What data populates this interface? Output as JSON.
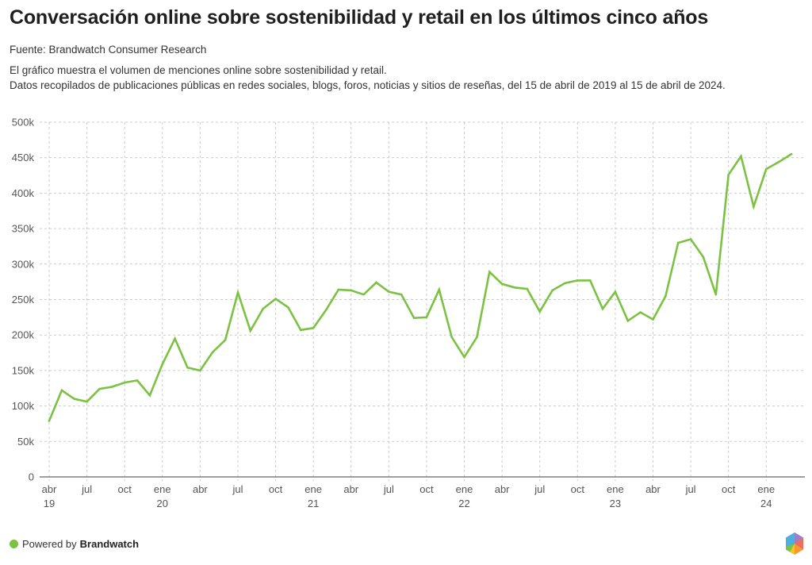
{
  "header": {
    "title": "Conversación online sobre sostenibilidad y retail en los últimos cinco años",
    "source": "Fuente: Brandwatch Consumer Research",
    "description_lines": [
      "El gráfico muestra el volumen de menciones online sobre sostenibilidad y retail.",
      "Datos recopilados de publicaciones públicas en redes sociales, blogs, foros, noticias y sitios de reseñas, del 15 de abril de 2019 al 15 de abril de 2024."
    ]
  },
  "footer": {
    "powered_by": "Powered by",
    "brand": "Brandwatch",
    "logo_icon": "brandwatch-hexagon-logo-icon"
  },
  "colors": {
    "line": "#7cc242",
    "grid": "#cccccc",
    "axis": "#666666"
  },
  "chart_data": {
    "type": "line",
    "title": "Conversación online sobre sostenibilidad y retail en los últimos cinco años",
    "xlabel": "",
    "ylabel": "",
    "ylim": [
      0,
      500000
    ],
    "grid": true,
    "y_ticks": [
      {
        "value": 0,
        "label": "0"
      },
      {
        "value": 50000,
        "label": "50k"
      },
      {
        "value": 100000,
        "label": "100k"
      },
      {
        "value": 150000,
        "label": "150k"
      },
      {
        "value": 200000,
        "label": "200k"
      },
      {
        "value": 250000,
        "label": "250k"
      },
      {
        "value": 300000,
        "label": "300k"
      },
      {
        "value": 350000,
        "label": "350k"
      },
      {
        "value": 400000,
        "label": "400k"
      },
      {
        "value": 450000,
        "label": "450k"
      },
      {
        "value": 500000,
        "label": "500k"
      }
    ],
    "x_ticks": [
      {
        "index": 0,
        "label": "abr",
        "year": "19"
      },
      {
        "index": 3,
        "label": "jul",
        "year": ""
      },
      {
        "index": 6,
        "label": "oct",
        "year": ""
      },
      {
        "index": 9,
        "label": "ene",
        "year": "20"
      },
      {
        "index": 12,
        "label": "abr",
        "year": ""
      },
      {
        "index": 15,
        "label": "jul",
        "year": ""
      },
      {
        "index": 18,
        "label": "oct",
        "year": ""
      },
      {
        "index": 21,
        "label": "ene",
        "year": "21"
      },
      {
        "index": 24,
        "label": "abr",
        "year": ""
      },
      {
        "index": 27,
        "label": "jul",
        "year": ""
      },
      {
        "index": 30,
        "label": "oct",
        "year": ""
      },
      {
        "index": 33,
        "label": "ene",
        "year": "22"
      },
      {
        "index": 36,
        "label": "abr",
        "year": ""
      },
      {
        "index": 39,
        "label": "jul",
        "year": ""
      },
      {
        "index": 42,
        "label": "oct",
        "year": ""
      },
      {
        "index": 45,
        "label": "ene",
        "year": "23"
      },
      {
        "index": 48,
        "label": "abr",
        "year": ""
      },
      {
        "index": 51,
        "label": "jul",
        "year": ""
      },
      {
        "index": 54,
        "label": "oct",
        "year": ""
      },
      {
        "index": 57,
        "label": "ene",
        "year": "24"
      }
    ],
    "x": [
      "2019-04",
      "2019-05",
      "2019-06",
      "2019-07",
      "2019-08",
      "2019-09",
      "2019-10",
      "2019-11",
      "2019-12",
      "2020-01",
      "2020-02",
      "2020-03",
      "2020-04",
      "2020-05",
      "2020-06",
      "2020-07",
      "2020-08",
      "2020-09",
      "2020-10",
      "2020-11",
      "2020-12",
      "2021-01",
      "2021-02",
      "2021-03",
      "2021-04",
      "2021-05",
      "2021-06",
      "2021-07",
      "2021-08",
      "2021-09",
      "2021-10",
      "2021-11",
      "2021-12",
      "2022-01",
      "2022-02",
      "2022-03",
      "2022-04",
      "2022-05",
      "2022-06",
      "2022-07",
      "2022-08",
      "2022-09",
      "2022-10",
      "2022-11",
      "2022-12",
      "2023-01",
      "2023-02",
      "2023-03",
      "2023-04",
      "2023-05",
      "2023-06",
      "2023-07",
      "2023-08",
      "2023-09",
      "2023-10",
      "2023-11",
      "2023-12",
      "2024-01",
      "2024-02",
      "2024-03"
    ],
    "series": [
      {
        "name": "Menciones",
        "values": [
          79000,
          122000,
          110000,
          106000,
          124000,
          127000,
          133000,
          136000,
          115000,
          159000,
          195000,
          154000,
          150000,
          176000,
          193000,
          260000,
          206000,
          237000,
          251000,
          239000,
          207000,
          210000,
          235000,
          264000,
          263000,
          257000,
          274000,
          261000,
          257000,
          224000,
          225000,
          264000,
          197000,
          169000,
          197000,
          289000,
          272000,
          267000,
          265000,
          233000,
          263000,
          273000,
          277000,
          277000,
          237000,
          261000,
          220000,
          232000,
          222000,
          255000,
          330000,
          335000,
          310000,
          257000,
          426000,
          452000,
          381000,
          434000,
          444000,
          455000
        ]
      }
    ]
  }
}
